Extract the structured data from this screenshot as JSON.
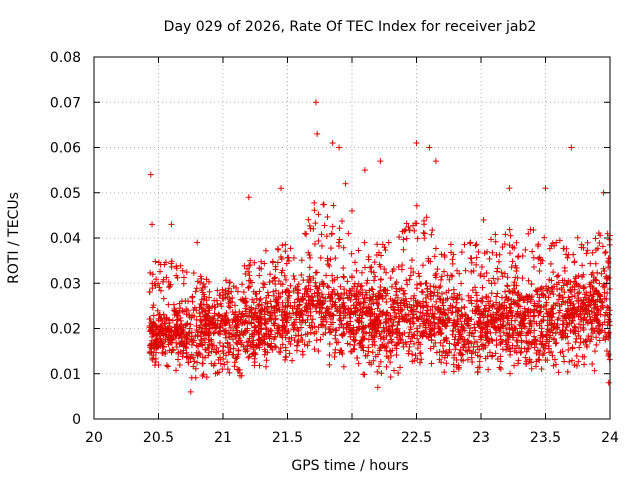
{
  "chart_data": {
    "type": "scatter",
    "title": "Day 029 of 2026, Rate Of TEC Index for receiver jab2",
    "xlabel": "GPS time / hours",
    "ylabel": "ROTI / TECUs",
    "xlim": [
      20,
      24
    ],
    "ylim": [
      0,
      0.08
    ],
    "xticks": [
      "20",
      "20.5",
      "21",
      "21.5",
      "22",
      "22.5",
      "23",
      "23.5",
      "24"
    ],
    "yticks": [
      "0",
      "0.01",
      "0.02",
      "0.03",
      "0.04",
      "0.05",
      "0.06",
      "0.07",
      "0.08"
    ],
    "grid": true,
    "marker": "+",
    "color": "#e00000",
    "series": [
      {
        "name": "ROTI",
        "notable_points": [
          {
            "x": 20.44,
            "y": 0.054
          },
          {
            "x": 20.45,
            "y": 0.043
          },
          {
            "x": 20.6,
            "y": 0.043
          },
          {
            "x": 20.8,
            "y": 0.039
          },
          {
            "x": 21.2,
            "y": 0.049
          },
          {
            "x": 21.45,
            "y": 0.051
          },
          {
            "x": 21.72,
            "y": 0.07
          },
          {
            "x": 21.73,
            "y": 0.063
          },
          {
            "x": 21.85,
            "y": 0.061
          },
          {
            "x": 21.9,
            "y": 0.06
          },
          {
            "x": 21.95,
            "y": 0.052
          },
          {
            "x": 22.0,
            "y": 0.046
          },
          {
            "x": 22.1,
            "y": 0.055
          },
          {
            "x": 22.22,
            "y": 0.057
          },
          {
            "x": 22.5,
            "y": 0.061
          },
          {
            "x": 22.6,
            "y": 0.06
          },
          {
            "x": 22.65,
            "y": 0.057
          },
          {
            "x": 23.02,
            "y": 0.044
          },
          {
            "x": 23.22,
            "y": 0.051
          },
          {
            "x": 23.5,
            "y": 0.051
          },
          {
            "x": 23.7,
            "y": 0.06
          },
          {
            "x": 23.95,
            "y": 0.05
          },
          {
            "x": 20.75,
            "y": 0.006
          },
          {
            "x": 22.2,
            "y": 0.007
          },
          {
            "x": 23.99,
            "y": 0.008
          }
        ],
        "profile": {
          "x": [
            20.43,
            20.6,
            20.8,
            21.0,
            21.2,
            21.4,
            21.6,
            21.7,
            21.8,
            21.9,
            22.0,
            22.2,
            22.4,
            22.5,
            22.6,
            22.8,
            23.0,
            23.2,
            23.4,
            23.6,
            23.8,
            24.0
          ],
          "typical": [
            0.018,
            0.019,
            0.018,
            0.02,
            0.02,
            0.021,
            0.023,
            0.025,
            0.024,
            0.023,
            0.022,
            0.02,
            0.022,
            0.023,
            0.022,
            0.02,
            0.02,
            0.022,
            0.021,
            0.022,
            0.023,
            0.024
          ],
          "upper": [
            0.035,
            0.035,
            0.032,
            0.03,
            0.036,
            0.038,
            0.04,
            0.048,
            0.05,
            0.046,
            0.04,
            0.04,
            0.042,
            0.048,
            0.045,
            0.038,
            0.04,
            0.042,
            0.042,
            0.042,
            0.04,
            0.042
          ],
          "lower": [
            0.011,
            0.011,
            0.008,
            0.009,
            0.009,
            0.011,
            0.012,
            0.013,
            0.012,
            0.011,
            0.011,
            0.008,
            0.01,
            0.011,
            0.011,
            0.009,
            0.01,
            0.01,
            0.01,
            0.01,
            0.011,
            0.01
          ]
        },
        "approx_point_count": 3200
      }
    ]
  }
}
